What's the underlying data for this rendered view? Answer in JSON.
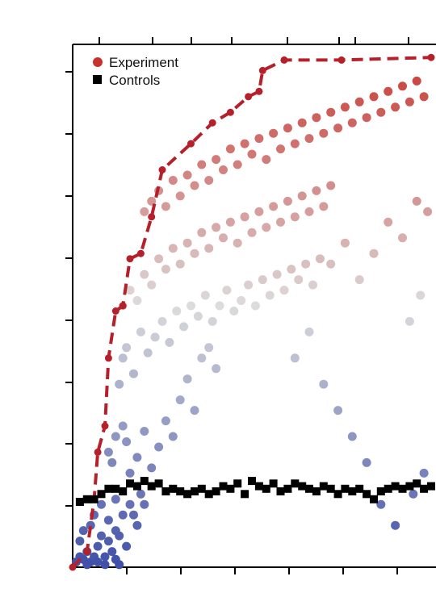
{
  "chart_data": {
    "type": "scatter",
    "title": "",
    "xlabel": "",
    "ylabel": "",
    "xlim": [
      0,
      1
    ],
    "ylim": [
      0,
      1
    ],
    "grid": false,
    "legend_placement": "top-left",
    "colors": {
      "experiment_high": "#c8302b",
      "experiment_mid": "#dcdcdc",
      "experiment_low": "#3f4fa8",
      "controls": "#000000",
      "frontier": "#b5202a",
      "axes": "#000000"
    },
    "legend": [
      {
        "key": "experiment",
        "label": "Experiment",
        "marker": "circle",
        "color": "#c8302b"
      },
      {
        "key": "controls",
        "label": "Controls",
        "marker": "square",
        "color": "#000000"
      }
    ],
    "frontier": [
      [
        0.0,
        0.0
      ],
      [
        0.04,
        0.03
      ],
      [
        0.06,
        0.13
      ],
      [
        0.07,
        0.22
      ],
      [
        0.09,
        0.27
      ],
      [
        0.1,
        0.4
      ],
      [
        0.12,
        0.49
      ],
      [
        0.14,
        0.5
      ],
      [
        0.16,
        0.59
      ],
      [
        0.19,
        0.6
      ],
      [
        0.22,
        0.67
      ],
      [
        0.25,
        0.76
      ],
      [
        0.33,
        0.81
      ],
      [
        0.39,
        0.85
      ],
      [
        0.44,
        0.87
      ],
      [
        0.49,
        0.9
      ],
      [
        0.52,
        0.91
      ],
      [
        0.53,
        0.95
      ],
      [
        0.59,
        0.97
      ],
      [
        0.75,
        0.97
      ],
      [
        1.0,
        0.975
      ]
    ],
    "controls": [
      [
        0.02,
        0.125
      ],
      [
        0.04,
        0.13
      ],
      [
        0.06,
        0.13
      ],
      [
        0.08,
        0.14
      ],
      [
        0.1,
        0.15
      ],
      [
        0.12,
        0.15
      ],
      [
        0.14,
        0.145
      ],
      [
        0.16,
        0.16
      ],
      [
        0.18,
        0.155
      ],
      [
        0.2,
        0.165
      ],
      [
        0.22,
        0.155
      ],
      [
        0.24,
        0.16
      ],
      [
        0.26,
        0.145
      ],
      [
        0.28,
        0.15
      ],
      [
        0.3,
        0.145
      ],
      [
        0.32,
        0.14
      ],
      [
        0.34,
        0.145
      ],
      [
        0.36,
        0.15
      ],
      [
        0.38,
        0.14
      ],
      [
        0.4,
        0.145
      ],
      [
        0.42,
        0.155
      ],
      [
        0.44,
        0.15
      ],
      [
        0.46,
        0.16
      ],
      [
        0.48,
        0.14
      ],
      [
        0.5,
        0.165
      ],
      [
        0.52,
        0.155
      ],
      [
        0.54,
        0.15
      ],
      [
        0.56,
        0.16
      ],
      [
        0.58,
        0.145
      ],
      [
        0.6,
        0.15
      ],
      [
        0.62,
        0.16
      ],
      [
        0.64,
        0.155
      ],
      [
        0.66,
        0.15
      ],
      [
        0.68,
        0.145
      ],
      [
        0.7,
        0.155
      ],
      [
        0.72,
        0.15
      ],
      [
        0.74,
        0.14
      ],
      [
        0.76,
        0.15
      ],
      [
        0.78,
        0.145
      ],
      [
        0.8,
        0.15
      ],
      [
        0.82,
        0.14
      ],
      [
        0.84,
        0.13
      ],
      [
        0.86,
        0.145
      ],
      [
        0.88,
        0.15
      ],
      [
        0.9,
        0.155
      ],
      [
        0.92,
        0.15
      ],
      [
        0.94,
        0.155
      ],
      [
        0.96,
        0.16
      ],
      [
        0.98,
        0.15
      ],
      [
        1.0,
        0.155
      ]
    ],
    "experiment": [
      [
        0.01,
        0.01
      ],
      [
        0.02,
        0.02
      ],
      [
        0.03,
        0.015
      ],
      [
        0.04,
        0.03
      ],
      [
        0.05,
        0.01
      ],
      [
        0.06,
        0.02
      ],
      [
        0.07,
        0.04
      ],
      [
        0.08,
        0.06
      ],
      [
        0.09,
        0.02
      ],
      [
        0.1,
        0.05
      ],
      [
        0.11,
        0.03
      ],
      [
        0.12,
        0.015
      ],
      [
        0.13,
        0.005
      ],
      [
        0.02,
        0.05
      ],
      [
        0.03,
        0.07
      ],
      [
        0.05,
        0.08
      ],
      [
        0.06,
        0.1
      ],
      [
        0.08,
        0.12
      ],
      [
        0.1,
        0.09
      ],
      [
        0.04,
        0.005
      ],
      [
        0.07,
        0.01
      ],
      [
        0.09,
        0.005
      ],
      [
        0.12,
        0.07
      ],
      [
        0.13,
        0.06
      ],
      [
        0.15,
        0.04
      ],
      [
        0.17,
        0.1
      ],
      [
        0.18,
        0.08
      ],
      [
        0.2,
        0.12
      ],
      [
        0.19,
        0.14
      ],
      [
        0.16,
        0.12
      ],
      [
        0.14,
        0.1
      ],
      [
        0.12,
        0.13
      ],
      [
        0.11,
        0.2
      ],
      [
        0.1,
        0.22
      ],
      [
        0.12,
        0.25
      ],
      [
        0.14,
        0.27
      ],
      [
        0.15,
        0.24
      ],
      [
        0.16,
        0.18
      ],
      [
        0.18,
        0.21
      ],
      [
        0.2,
        0.26
      ],
      [
        0.22,
        0.19
      ],
      [
        0.24,
        0.23
      ],
      [
        0.26,
        0.28
      ],
      [
        0.28,
        0.25
      ],
      [
        0.3,
        0.32
      ],
      [
        0.32,
        0.36
      ],
      [
        0.34,
        0.3
      ],
      [
        0.36,
        0.4
      ],
      [
        0.38,
        0.42
      ],
      [
        0.4,
        0.38
      ],
      [
        0.13,
        0.35
      ],
      [
        0.14,
        0.4
      ],
      [
        0.15,
        0.42
      ],
      [
        0.17,
        0.37
      ],
      [
        0.19,
        0.45
      ],
      [
        0.21,
        0.41
      ],
      [
        0.23,
        0.44
      ],
      [
        0.25,
        0.47
      ],
      [
        0.27,
        0.43
      ],
      [
        0.29,
        0.49
      ],
      [
        0.31,
        0.46
      ],
      [
        0.33,
        0.5
      ],
      [
        0.35,
        0.48
      ],
      [
        0.37,
        0.52
      ],
      [
        0.39,
        0.47
      ],
      [
        0.41,
        0.5
      ],
      [
        0.43,
        0.53
      ],
      [
        0.45,
        0.49
      ],
      [
        0.47,
        0.51
      ],
      [
        0.49,
        0.54
      ],
      [
        0.51,
        0.5
      ],
      [
        0.53,
        0.55
      ],
      [
        0.55,
        0.52
      ],
      [
        0.57,
        0.56
      ],
      [
        0.59,
        0.53
      ],
      [
        0.61,
        0.57
      ],
      [
        0.63,
        0.55
      ],
      [
        0.65,
        0.58
      ],
      [
        0.67,
        0.54
      ],
      [
        0.69,
        0.59
      ],
      [
        0.14,
        0.5
      ],
      [
        0.16,
        0.53
      ],
      [
        0.18,
        0.51
      ],
      [
        0.2,
        0.56
      ],
      [
        0.22,
        0.54
      ],
      [
        0.24,
        0.59
      ],
      [
        0.26,
        0.57
      ],
      [
        0.28,
        0.61
      ],
      [
        0.3,
        0.58
      ],
      [
        0.32,
        0.62
      ],
      [
        0.34,
        0.6
      ],
      [
        0.36,
        0.64
      ],
      [
        0.38,
        0.61
      ],
      [
        0.4,
        0.65
      ],
      [
        0.42,
        0.63
      ],
      [
        0.44,
        0.66
      ],
      [
        0.46,
        0.62
      ],
      [
        0.48,
        0.67
      ],
      [
        0.5,
        0.64
      ],
      [
        0.52,
        0.68
      ],
      [
        0.54,
        0.65
      ],
      [
        0.56,
        0.69
      ],
      [
        0.58,
        0.66
      ],
      [
        0.6,
        0.7
      ],
      [
        0.62,
        0.67
      ],
      [
        0.64,
        0.71
      ],
      [
        0.66,
        0.68
      ],
      [
        0.68,
        0.72
      ],
      [
        0.7,
        0.69
      ],
      [
        0.72,
        0.73
      ],
      [
        0.2,
        0.68
      ],
      [
        0.22,
        0.7
      ],
      [
        0.24,
        0.72
      ],
      [
        0.26,
        0.69
      ],
      [
        0.28,
        0.74
      ],
      [
        0.3,
        0.71
      ],
      [
        0.32,
        0.75
      ],
      [
        0.34,
        0.73
      ],
      [
        0.36,
        0.77
      ],
      [
        0.38,
        0.74
      ],
      [
        0.4,
        0.78
      ],
      [
        0.42,
        0.76
      ],
      [
        0.44,
        0.8
      ],
      [
        0.46,
        0.77
      ],
      [
        0.48,
        0.81
      ],
      [
        0.5,
        0.79
      ],
      [
        0.52,
        0.82
      ],
      [
        0.54,
        0.78
      ],
      [
        0.56,
        0.83
      ],
      [
        0.58,
        0.8
      ],
      [
        0.6,
        0.84
      ],
      [
        0.62,
        0.81
      ],
      [
        0.64,
        0.85
      ],
      [
        0.66,
        0.82
      ],
      [
        0.68,
        0.86
      ],
      [
        0.7,
        0.83
      ],
      [
        0.72,
        0.87
      ],
      [
        0.74,
        0.84
      ],
      [
        0.76,
        0.88
      ],
      [
        0.78,
        0.85
      ],
      [
        0.8,
        0.89
      ],
      [
        0.82,
        0.86
      ],
      [
        0.84,
        0.9
      ],
      [
        0.86,
        0.87
      ],
      [
        0.88,
        0.91
      ],
      [
        0.9,
        0.88
      ],
      [
        0.92,
        0.92
      ],
      [
        0.94,
        0.89
      ],
      [
        0.96,
        0.93
      ],
      [
        0.98,
        0.9
      ],
      [
        0.62,
        0.4
      ],
      [
        0.66,
        0.45
      ],
      [
        0.7,
        0.35
      ],
      [
        0.74,
        0.3
      ],
      [
        0.78,
        0.25
      ],
      [
        0.82,
        0.2
      ],
      [
        0.86,
        0.12
      ],
      [
        0.9,
        0.08
      ],
      [
        0.95,
        0.14
      ],
      [
        0.98,
        0.18
      ],
      [
        0.72,
        0.58
      ],
      [
        0.76,
        0.62
      ],
      [
        0.8,
        0.55
      ],
      [
        0.84,
        0.6
      ],
      [
        0.88,
        0.66
      ],
      [
        0.92,
        0.63
      ],
      [
        0.96,
        0.7
      ],
      [
        0.99,
        0.68
      ],
      [
        0.94,
        0.47
      ],
      [
        0.97,
        0.52
      ]
    ]
  }
}
